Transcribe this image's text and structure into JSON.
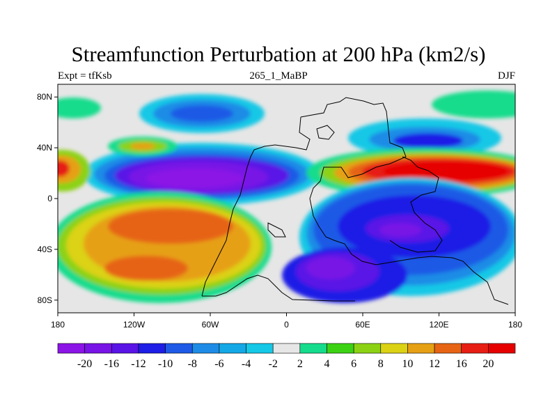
{
  "title": "Streamfunction Perturbation at 200 hPa (km2/s)",
  "subtitle_left": "Expt = tfKsb",
  "subtitle_center": "265_1_MaBP",
  "subtitle_right": "DJF",
  "map": {
    "lon_range": [
      -180,
      180
    ],
    "lat_range": [
      -90,
      90
    ],
    "lon_ticks": [
      {
        "value": -180,
        "label": "180"
      },
      {
        "value": -120,
        "label": "120W"
      },
      {
        "value": -60,
        "label": "60W"
      },
      {
        "value": 0,
        "label": "0"
      },
      {
        "value": 60,
        "label": "60E"
      },
      {
        "value": 120,
        "label": "120E"
      },
      {
        "value": 180,
        "label": "180"
      }
    ],
    "lat_ticks": [
      {
        "value": 80,
        "label": "80N"
      },
      {
        "value": 40,
        "label": "40N"
      },
      {
        "value": 0,
        "label": "0"
      },
      {
        "value": -40,
        "label": "40S"
      },
      {
        "value": -80,
        "label": "80S"
      }
    ],
    "background_color": "#e6e6e6",
    "colorbar": {
      "labels": [
        "-20",
        "-16",
        "-12",
        "-10",
        "-8",
        "-6",
        "-4",
        "-2",
        "2",
        "4",
        "6",
        "8",
        "10",
        "12",
        "16",
        "20"
      ],
      "colors": [
        "#8c14e6",
        "#7814e6",
        "#5a14e6",
        "#1e1ee6",
        "#1e5ae6",
        "#1e8ce6",
        "#14a8e6",
        "#14c8e6",
        "#e6e6e6",
        "#14dc8c",
        "#3cd214",
        "#8cd214",
        "#dcd214",
        "#e6a014",
        "#e66414",
        "#e61e14",
        "#e60000"
      ]
    }
  }
}
